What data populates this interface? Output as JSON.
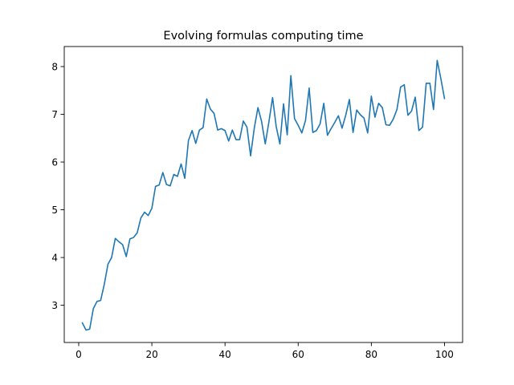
{
  "chart_data": {
    "type": "line",
    "title": "Evolving formulas computing time",
    "xlabel": "",
    "ylabel": "",
    "xlim": [
      -3.95,
      104.95
    ],
    "ylim": [
      2.22,
      8.42
    ],
    "x_ticks": [
      0,
      20,
      40,
      60,
      80,
      100
    ],
    "y_ticks": [
      3,
      4,
      5,
      6,
      7,
      8
    ],
    "grid": false,
    "line_color": "#1f77b4",
    "series": [
      {
        "x": [
          1,
          2,
          3,
          4,
          5,
          6,
          7,
          8,
          9,
          10,
          11,
          12,
          13,
          14,
          15,
          16,
          17,
          18,
          19,
          20,
          21,
          22,
          23,
          24,
          25,
          26,
          27,
          28,
          29,
          30,
          31,
          32,
          33,
          34,
          35,
          36,
          37,
          38,
          39,
          40,
          41,
          42,
          43,
          44,
          45,
          46,
          47,
          48,
          49,
          50,
          51,
          52,
          53,
          54,
          55,
          56,
          57,
          58,
          59,
          60,
          61,
          62,
          63,
          64,
          65,
          66,
          67,
          68,
          69,
          70,
          71,
          72,
          73,
          74,
          75,
          76,
          77,
          78,
          79,
          80,
          81,
          82,
          83,
          84,
          85,
          86,
          87,
          88,
          89,
          90,
          91,
          92,
          93,
          94,
          95,
          96,
          97,
          98,
          99,
          100
        ],
        "values": [
          2.63,
          2.48,
          2.5,
          2.93,
          3.08,
          3.1,
          3.44,
          3.86,
          4.0,
          4.4,
          4.33,
          4.27,
          4.02,
          4.39,
          4.42,
          4.52,
          4.83,
          4.95,
          4.88,
          5.03,
          5.49,
          5.52,
          5.78,
          5.53,
          5.5,
          5.74,
          5.7,
          5.96,
          5.66,
          6.45,
          6.66,
          6.39,
          6.67,
          6.72,
          7.32,
          7.11,
          7.02,
          6.67,
          6.7,
          6.66,
          6.44,
          6.67,
          6.47,
          6.47,
          6.86,
          6.73,
          6.13,
          6.71,
          7.14,
          6.85,
          6.38,
          6.84,
          7.35,
          6.74,
          6.38,
          7.22,
          6.57,
          7.81,
          6.91,
          6.77,
          6.61,
          6.87,
          7.55,
          6.62,
          6.66,
          6.8,
          7.23,
          6.56,
          6.7,
          6.83,
          6.97,
          6.71,
          6.98,
          7.31,
          6.62,
          7.09,
          6.99,
          6.92,
          6.61,
          7.38,
          6.94,
          7.23,
          7.14,
          6.78,
          6.77,
          6.9,
          7.1,
          7.57,
          7.62,
          6.98,
          7.07,
          7.36,
          6.66,
          6.73,
          7.65,
          7.65,
          7.1,
          8.13,
          7.75,
          7.33
        ]
      }
    ]
  }
}
